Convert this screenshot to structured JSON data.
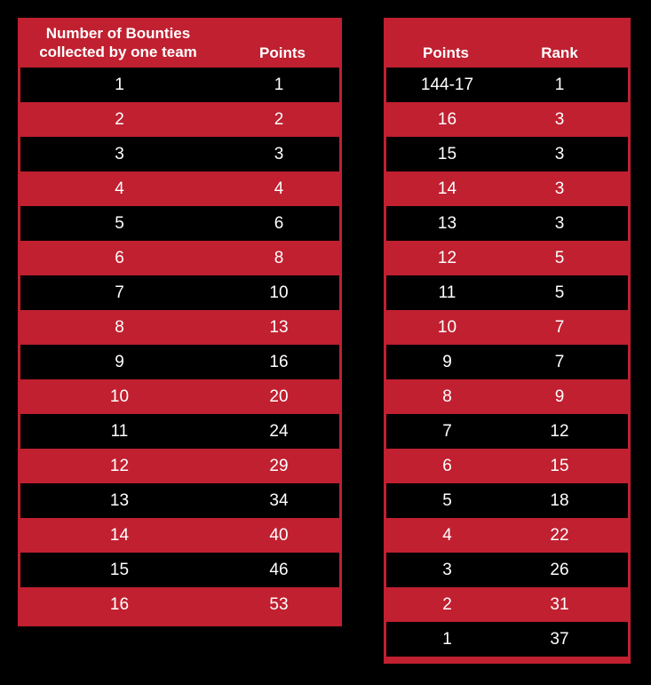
{
  "bounty_table": {
    "header_bounties_line1": "Number of Bounties",
    "header_bounties_line2": "collected by one team",
    "header_points": "Points",
    "rows": [
      [
        "1",
        "1"
      ],
      [
        "2",
        "2"
      ],
      [
        "3",
        "3"
      ],
      [
        "4",
        "4"
      ],
      [
        "5",
        "6"
      ],
      [
        "6",
        "8"
      ],
      [
        "7",
        "10"
      ],
      [
        "8",
        "13"
      ],
      [
        "9",
        "16"
      ],
      [
        "10",
        "20"
      ],
      [
        "11",
        "24"
      ],
      [
        "12",
        "29"
      ],
      [
        "13",
        "34"
      ],
      [
        "14",
        "40"
      ],
      [
        "15",
        "46"
      ],
      [
        "16",
        "53"
      ]
    ]
  },
  "rank_table": {
    "header_points": "Points",
    "header_rank": "Rank",
    "rows": [
      [
        "144-17",
        "1"
      ],
      [
        "16",
        "3"
      ],
      [
        "15",
        "3"
      ],
      [
        "14",
        "3"
      ],
      [
        "13",
        "3"
      ],
      [
        "12",
        "5"
      ],
      [
        "11",
        "5"
      ],
      [
        "10",
        "7"
      ],
      [
        "9",
        "7"
      ],
      [
        "8",
        "9"
      ],
      [
        "7",
        "12"
      ],
      [
        "6",
        "15"
      ],
      [
        "5",
        "18"
      ],
      [
        "4",
        "22"
      ],
      [
        "3",
        "26"
      ],
      [
        "2",
        "31"
      ],
      [
        "1",
        "37"
      ]
    ]
  },
  "colors": {
    "accent": "#c02030",
    "background": "#000000",
    "text": "#ffffff"
  }
}
